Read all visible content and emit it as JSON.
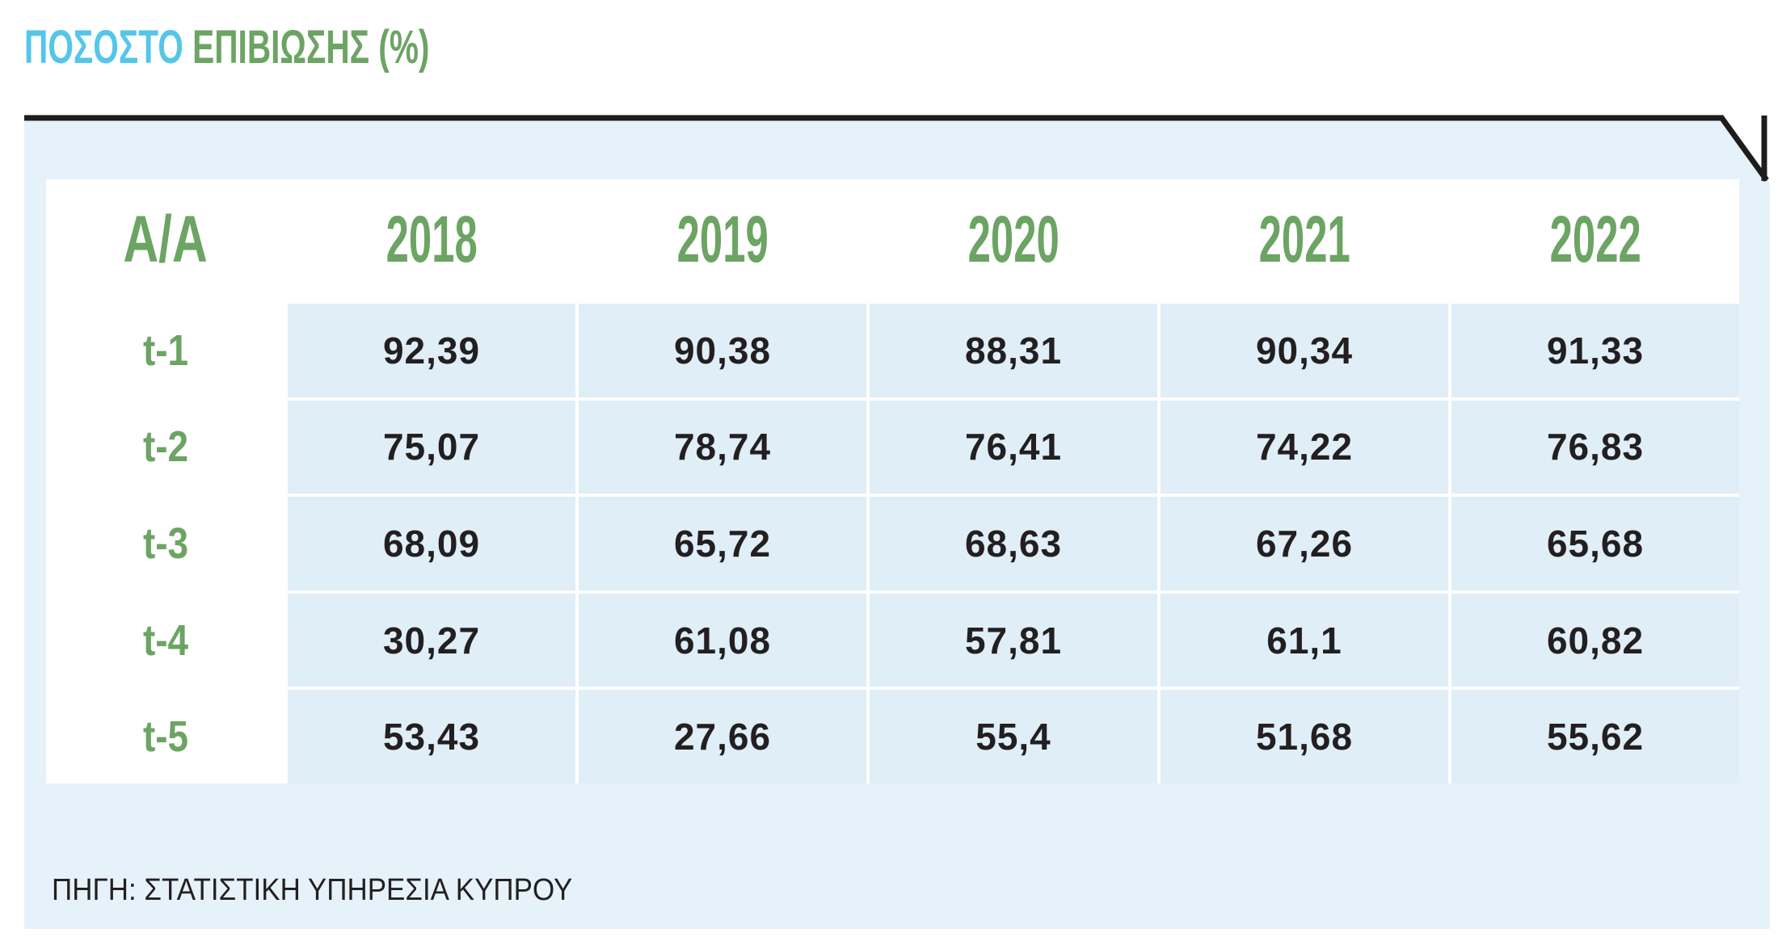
{
  "title": {
    "part1": "ΠΟΣΟΣΤΟ",
    "part2": "ΕΠΙΒΙΩΣΗΣ (%)"
  },
  "source": "ΠΗΓΗ: ΣΤΑΤΙΣΤΙΚΗ ΥΠΗΡΕΣΙΑ ΚΥΠΡΟΥ",
  "colors": {
    "title_accent_cyan": "#55c6e9",
    "title_green": "#6ca463",
    "header_green": "#6ca463",
    "value_black": "#231f20",
    "rule_black": "#1d1d1b",
    "panel_blue": "#e6f2f9",
    "cell_blue": "#dfeef7"
  },
  "chart_data": {
    "type": "table",
    "title": "ΠΟΣΟΣΤΟ ΕΠΙΒΙΩΣΗΣ (%)",
    "decimal_separator": ",",
    "columns": [
      "A/A",
      "2018",
      "2019",
      "2020",
      "2021",
      "2022"
    ],
    "rows": [
      {
        "label": "t-1",
        "values": [
          "92,39",
          "90,38",
          "88,31",
          "90,34",
          "91,33"
        ]
      },
      {
        "label": "t-2",
        "values": [
          "75,07",
          "78,74",
          "76,41",
          "74,22",
          "76,83"
        ]
      },
      {
        "label": "t-3",
        "values": [
          "68,09",
          "65,72",
          "68,63",
          "67,26",
          "65,68"
        ]
      },
      {
        "label": "t-4",
        "values": [
          "30,27",
          "61,08",
          "57,81",
          "61,1",
          "60,82"
        ]
      },
      {
        "label": "t-5",
        "values": [
          "53,43",
          "27,66",
          "55,4",
          "51,68",
          "55,62"
        ]
      }
    ],
    "rows_numeric": [
      {
        "label": "t-1",
        "values": [
          92.39,
          90.38,
          88.31,
          90.34,
          91.33
        ]
      },
      {
        "label": "t-2",
        "values": [
          75.07,
          78.74,
          76.41,
          74.22,
          76.83
        ]
      },
      {
        "label": "t-3",
        "values": [
          68.09,
          65.72,
          68.63,
          67.26,
          65.68
        ]
      },
      {
        "label": "t-4",
        "values": [
          30.27,
          61.08,
          57.81,
          61.1,
          60.82
        ]
      },
      {
        "label": "t-5",
        "values": [
          53.43,
          27.66,
          55.4,
          51.68,
          55.62
        ]
      }
    ],
    "source": "ΠΗΓΗ: ΣΤΑΤΙΣΤΙΚΗ ΥΠΗΡΕΣΙΑ ΚΥΠΡΟΥ"
  }
}
